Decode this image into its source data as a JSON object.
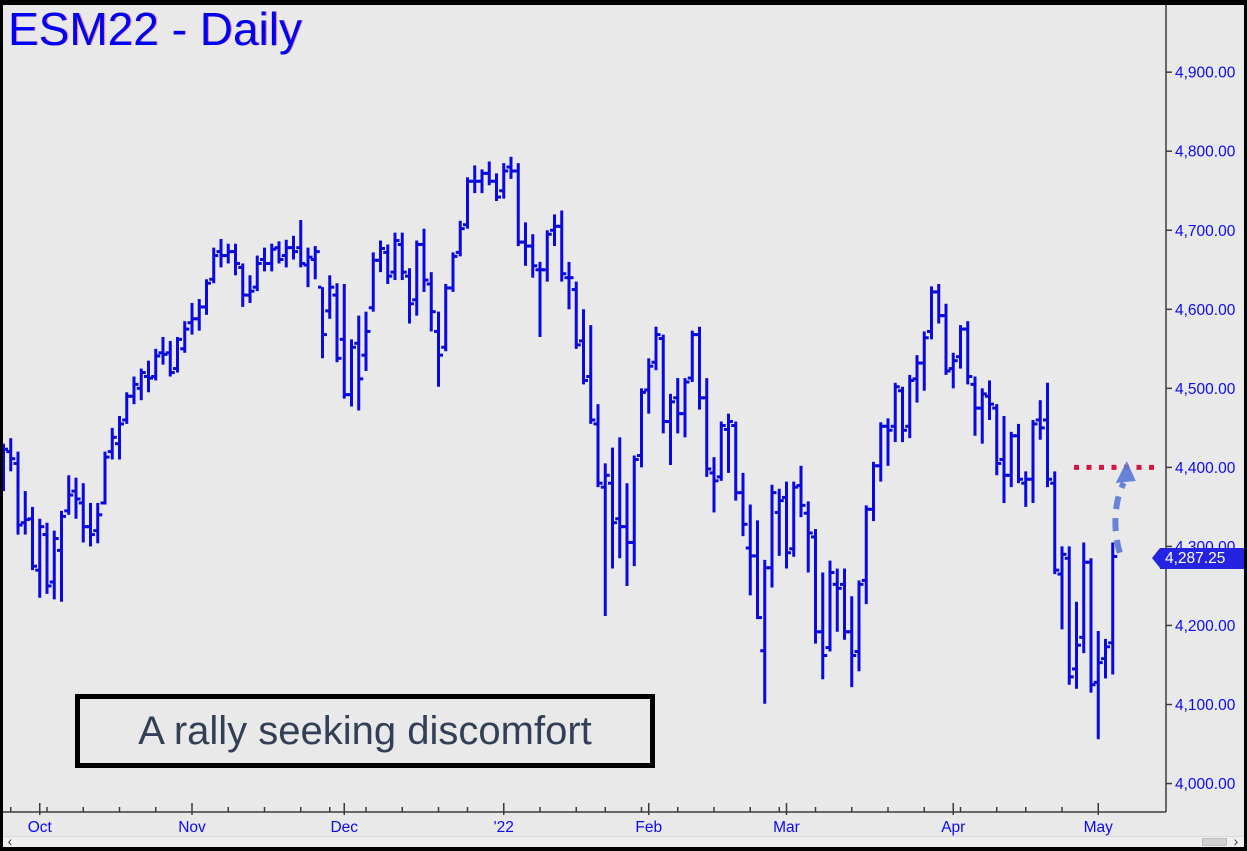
{
  "window": {
    "title": "ESM22 - Daily",
    "background": "#e9e9e9",
    "frame_color": "#000000"
  },
  "annotation": {
    "text": "A rally seeking discomfort",
    "text_color": "#323f56",
    "border_color": "#000000"
  },
  "price_badge": {
    "label": "4,287.25",
    "value": 4287.25,
    "bg": "#2424e0",
    "fg": "#ffffff"
  },
  "target_line": {
    "price": 4400,
    "color": "#d41441",
    "style": "dotted"
  },
  "arrow": {
    "from_bar_index": 153,
    "from_price": 4292,
    "to_price": 4398,
    "color": "#5b79d6",
    "style": "dashed"
  },
  "colors": {
    "bar": "#0909e0",
    "axis_line": "#3c3c3c",
    "axis_text": "#0a0af5",
    "title_text": "#0000f2"
  },
  "y_axis": {
    "side": "right",
    "ticks": [
      {
        "value": 4900,
        "label": "4,900.00"
      },
      {
        "value": 4800,
        "label": "4,800.00"
      },
      {
        "value": 4700,
        "label": "4,700.00"
      },
      {
        "value": 4600,
        "label": "4,600.00"
      },
      {
        "value": 4500,
        "label": "4,500.00"
      },
      {
        "value": 4400,
        "label": "4,400.00"
      },
      {
        "value": 4300,
        "label": "4,300.00"
      },
      {
        "value": 4200,
        "label": "4,200.00"
      },
      {
        "value": 4100,
        "label": "4,100.00"
      },
      {
        "value": 4000,
        "label": "4,000.00"
      }
    ]
  },
  "x_axis": {
    "months": [
      {
        "label": "Oct",
        "bar_index": 5
      },
      {
        "label": "Nov",
        "bar_index": 26
      },
      {
        "label": "Dec",
        "bar_index": 47
      },
      {
        "label": "'22",
        "bar_index": 69
      },
      {
        "label": "Feb",
        "bar_index": 89
      },
      {
        "label": "Mar",
        "bar_index": 108
      },
      {
        "label": "Apr",
        "bar_index": 131
      },
      {
        "label": "May",
        "bar_index": 151
      }
    ],
    "week_tick_bar_indices": [
      1,
      6,
      11,
      16,
      21,
      31,
      36,
      41,
      45,
      50,
      55,
      60,
      64,
      74,
      79,
      83,
      88,
      93,
      98,
      103,
      107,
      112,
      117,
      122,
      127,
      132,
      137,
      141,
      146
    ]
  },
  "scrollbar": {
    "left_arrow": "‹",
    "right_arrow": "›"
  },
  "chart_data": {
    "type": "bar",
    "subtype": "ohlc-daily",
    "title": "ESM22 - Daily",
    "symbol": "ESM22",
    "timeframe": "Daily",
    "period_shown": "late Sep 2021 through May 4 2022",
    "last_price": 4287.25,
    "target_price": 4400,
    "ylim": [
      3964,
      4985
    ],
    "grid": false,
    "legend": "none",
    "bars_ohlc": [
      [
        4415,
        4430,
        4370,
        4423
      ],
      [
        4420,
        4437,
        4395,
        4411
      ],
      [
        4405,
        4420,
        4315,
        4327
      ],
      [
        4330,
        4370,
        4315,
        4334
      ],
      [
        4335,
        4350,
        4270,
        4275
      ],
      [
        4270,
        4335,
        4235,
        4325
      ],
      [
        4315,
        4330,
        4240,
        4250
      ],
      [
        4255,
        4320,
        4233,
        4310
      ],
      [
        4295,
        4345,
        4230,
        4338
      ],
      [
        4345,
        4390,
        4340,
        4365
      ],
      [
        4370,
        4387,
        4335,
        4360
      ],
      [
        4355,
        4380,
        4305,
        4325
      ],
      [
        4325,
        4355,
        4300,
        4315
      ],
      [
        4320,
        4355,
        4304,
        4340
      ],
      [
        4355,
        4420,
        4353,
        4413
      ],
      [
        4420,
        4450,
        4410,
        4438
      ],
      [
        4430,
        4465,
        4410,
        4455
      ],
      [
        4460,
        4495,
        4455,
        4490
      ],
      [
        4490,
        4515,
        4480,
        4505
      ],
      [
        4500,
        4525,
        4485,
        4520
      ],
      [
        4515,
        4535,
        4495,
        4513
      ],
      [
        4515,
        4550,
        4510,
        4541
      ],
      [
        4545,
        4565,
        4530,
        4543
      ],
      [
        4545,
        4560,
        4515,
        4520
      ],
      [
        4525,
        4565,
        4520,
        4562
      ],
      [
        4550,
        4585,
        4545,
        4575
      ],
      [
        4583,
        4608,
        4568,
        4588
      ],
      [
        4588,
        4613,
        4573,
        4603
      ],
      [
        4603,
        4638,
        4593,
        4633
      ],
      [
        4638,
        4678,
        4633,
        4668
      ],
      [
        4673,
        4689,
        4653,
        4668
      ],
      [
        4668,
        4683,
        4658,
        4673
      ],
      [
        4673,
        4683,
        4643,
        4658
      ],
      [
        4653,
        4658,
        4603,
        4618
      ],
      [
        4618,
        4643,
        4608,
        4623
      ],
      [
        4628,
        4668,
        4623,
        4658
      ],
      [
        4663,
        4678,
        4648,
        4658
      ],
      [
        4658,
        4683,
        4648,
        4676
      ],
      [
        4678,
        4686,
        4658,
        4663
      ],
      [
        4668,
        4688,
        4653,
        4678
      ],
      [
        4678,
        4693,
        4663,
        4673
      ],
      [
        4678,
        4713,
        4653,
        4658
      ],
      [
        4656,
        4678,
        4628,
        4666
      ],
      [
        4663,
        4680,
        4638,
        4673
      ],
      [
        4628,
        4628,
        4538,
        4568
      ],
      [
        4598,
        4643,
        4588,
        4628
      ],
      [
        4618,
        4633,
        4533,
        4538
      ],
      [
        4562,
        4632,
        4487,
        4492
      ],
      [
        4492,
        4562,
        4477,
        4552
      ],
      [
        4557,
        4592,
        4472,
        4512
      ],
      [
        4542,
        4597,
        4522,
        4572
      ],
      [
        4602,
        4672,
        4597,
        4662
      ],
      [
        4662,
        4687,
        4647,
        4677
      ],
      [
        4672,
        4682,
        4632,
        4642
      ],
      [
        4647,
        4697,
        4637,
        4687
      ],
      [
        4682,
        4697,
        4637,
        4647
      ],
      [
        4642,
        4652,
        4582,
        4607
      ],
      [
        4612,
        4687,
        4592,
        4682
      ],
      [
        4682,
        4702,
        4622,
        4637
      ],
      [
        4632,
        4647,
        4572,
        4597
      ],
      [
        4572,
        4597,
        4502,
        4542
      ],
      [
        4552,
        4632,
        4547,
        4627
      ],
      [
        4627,
        4672,
        4622,
        4667
      ],
      [
        4672,
        4712,
        4667,
        4702
      ],
      [
        4707,
        4767,
        4702,
        4762
      ],
      [
        4762,
        4782,
        4747,
        4762
      ],
      [
        4762,
        4777,
        4747,
        4772
      ],
      [
        4772,
        4787,
        4757,
        4762
      ],
      [
        4762,
        4772,
        4737,
        4742
      ],
      [
        4750,
        4785,
        4740,
        4775
      ],
      [
        4780,
        4793,
        4765,
        4775
      ],
      [
        4775,
        4785,
        4680,
        4685
      ],
      [
        4685,
        4710,
        4655,
        4680
      ],
      [
        4680,
        4695,
        4640,
        4655
      ],
      [
        4650,
        4660,
        4565,
        4650
      ],
      [
        4650,
        4700,
        4635,
        4695
      ],
      [
        4700,
        4720,
        4680,
        4705
      ],
      [
        4705,
        4725,
        4635,
        4645
      ],
      [
        4640,
        4660,
        4600,
        4640
      ],
      [
        4625,
        4635,
        4550,
        4555
      ],
      [
        4560,
        4600,
        4505,
        4510
      ],
      [
        4515,
        4580,
        4455,
        4460
      ],
      [
        4455,
        4480,
        4375,
        4380
      ],
      [
        4375,
        4405,
        4212,
        4390
      ],
      [
        4380,
        4425,
        4272,
        4330
      ],
      [
        4335,
        4438,
        4285,
        4325
      ],
      [
        4325,
        4380,
        4250,
        4305
      ],
      [
        4305,
        4415,
        4275,
        4410
      ],
      [
        4415,
        4500,
        4400,
        4495
      ],
      [
        4498,
        4538,
        4468,
        4528
      ],
      [
        4533,
        4578,
        4523,
        4568
      ],
      [
        4563,
        4568,
        4443,
        4458
      ],
      [
        4458,
        4493,
        4403,
        4483
      ],
      [
        4488,
        4513,
        4443,
        4468
      ],
      [
        4468,
        4513,
        4438,
        4508
      ],
      [
        4513,
        4573,
        4508,
        4568
      ],
      [
        4568,
        4578,
        4473,
        4488
      ],
      [
        4488,
        4513,
        4388,
        4398
      ],
      [
        4393,
        4413,
        4343,
        4383
      ],
      [
        4388,
        4458,
        4383,
        4453
      ],
      [
        4448,
        4468,
        4393,
        4458
      ],
      [
        4453,
        4458,
        4358,
        4368
      ],
      [
        4368,
        4393,
        4313,
        4328
      ],
      [
        4298,
        4353,
        4238,
        4288
      ],
      [
        4288,
        4333,
        4208,
        4210
      ],
      [
        4168,
        4283,
        4101,
        4273
      ],
      [
        4273,
        4378,
        4248,
        4368
      ],
      [
        4343,
        4373,
        4288,
        4358
      ],
      [
        4362,
        4382,
        4272,
        4292
      ],
      [
        4297,
        4382,
        4287,
        4375
      ],
      [
        4377,
        4402,
        4337,
        4352
      ],
      [
        4342,
        4357,
        4267,
        4317
      ],
      [
        4312,
        4322,
        4177,
        4192
      ],
      [
        4192,
        4267,
        4132,
        4162
      ],
      [
        4172,
        4282,
        4167,
        4267
      ],
      [
        4252,
        4272,
        4192,
        4247
      ],
      [
        4252,
        4272,
        4182,
        4192
      ],
      [
        4192,
        4237,
        4122,
        4162
      ],
      [
        4167,
        4257,
        4142,
        4252
      ],
      [
        4257,
        4352,
        4227,
        4347
      ],
      [
        4347,
        4407,
        4332,
        4402
      ],
      [
        4402,
        4457,
        4382,
        4452
      ],
      [
        4452,
        4462,
        4402,
        4447
      ],
      [
        4452,
        4507,
        4432,
        4502
      ],
      [
        4497,
        4502,
        4432,
        4447
      ],
      [
        4452,
        4517,
        4437,
        4510
      ],
      [
        4512,
        4542,
        4482,
        4532
      ],
      [
        4532,
        4572,
        4497,
        4564
      ],
      [
        4572,
        4629,
        4562,
        4622
      ],
      [
        4622,
        4632,
        4582,
        4592
      ],
      [
        4592,
        4607,
        4517,
        4522
      ],
      [
        4525,
        4545,
        4500,
        4535
      ],
      [
        4540,
        4580,
        4525,
        4575
      ],
      [
        4575,
        4585,
        4505,
        4515
      ],
      [
        4505,
        4515,
        4440,
        4475
      ],
      [
        4475,
        4500,
        4430,
        4493
      ],
      [
        4490,
        4510,
        4460,
        4480
      ],
      [
        4475,
        4480,
        4390,
        4405
      ],
      [
        4410,
        4465,
        4355,
        4390
      ],
      [
        4390,
        4445,
        4375,
        4440
      ],
      [
        4440,
        4455,
        4380,
        4385
      ],
      [
        4380,
        4395,
        4350,
        4385
      ],
      [
        4385,
        4460,
        4355,
        4455
      ],
      [
        4460,
        4485,
        4435,
        4450
      ],
      [
        4460,
        4507,
        4375,
        4385
      ],
      [
        4380,
        4395,
        4265,
        4270
      ],
      [
        4265,
        4300,
        4195,
        4290
      ],
      [
        4285,
        4300,
        4125,
        4135
      ],
      [
        4145,
        4230,
        4120,
        4175
      ],
      [
        4185,
        4305,
        4165,
        4280
      ],
      [
        4280,
        4285,
        4115,
        4125
      ],
      [
        4128,
        4193,
        4056,
        4153
      ],
      [
        4158,
        4183,
        4133,
        4173
      ],
      [
        4178,
        4305,
        4138,
        4287.25
      ]
    ]
  }
}
